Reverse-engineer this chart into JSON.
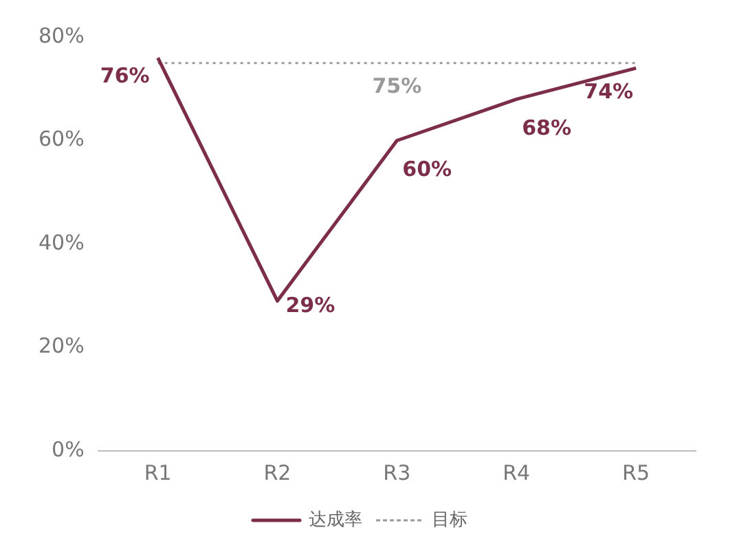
{
  "chart_data": {
    "type": "line",
    "categories": [
      "R1",
      "R2",
      "R3",
      "R4",
      "R5"
    ],
    "series": [
      {
        "name": "达成率",
        "color": "#7b2d4a",
        "values": [
          76,
          29,
          60,
          68,
          74
        ],
        "value_labels": [
          "76%",
          "29%",
          "60%",
          "68%",
          "74%"
        ],
        "line_style": "solid"
      },
      {
        "name": "目标",
        "color": "#9a9a9a",
        "values": [
          75,
          75,
          75,
          75,
          75
        ],
        "value_labels": [
          null,
          null,
          "75%",
          null,
          null
        ],
        "line_style": "dotted"
      }
    ],
    "ylim": [
      0,
      80
    ],
    "yticks": [
      {
        "value": 0,
        "label": "0%"
      },
      {
        "value": 20,
        "label": "20%"
      },
      {
        "value": 40,
        "label": "40%"
      },
      {
        "value": 60,
        "label": "60%"
      },
      {
        "value": 80,
        "label": "80%"
      }
    ],
    "grid": false,
    "legend": "bottom",
    "marker": "none"
  }
}
